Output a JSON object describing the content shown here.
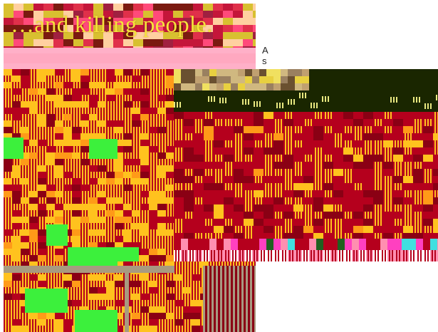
{
  "caption": "…and killing people.",
  "side_text": "As",
  "colors": {
    "caption_text": "#f5e33a",
    "glitch_red": "#b5001d",
    "glitch_yellow": "#ffc21e",
    "glitch_green": "#3cf03c",
    "glitch_pink": "#ff8fb0",
    "dark_band": "#1a2600"
  }
}
